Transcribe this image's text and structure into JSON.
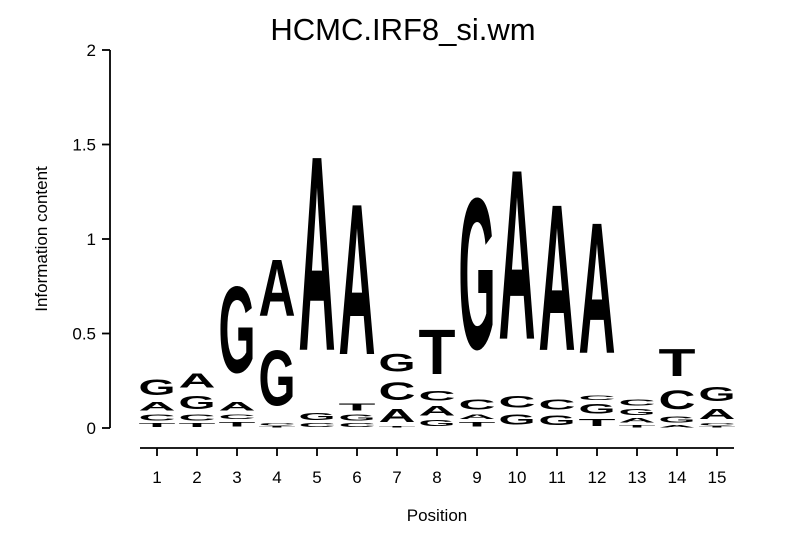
{
  "chart_data": {
    "type": "sequence_logo",
    "title": "HCMC.IRF8_si.wm",
    "xlabel": "Position",
    "ylabel": "Information content",
    "ylim": [
      0,
      2
    ],
    "yticks": [
      0,
      0.5,
      1,
      1.5,
      2
    ],
    "ytick_labels": [
      "0",
      "0.5",
      "1",
      "1.5",
      "2"
    ],
    "positions": [
      "1",
      "2",
      "3",
      "4",
      "5",
      "6",
      "7",
      "8",
      "9",
      "10",
      "11",
      "12",
      "13",
      "14",
      "15"
    ],
    "colors": {
      "A": "#00E100",
      "C": "#0000EE",
      "G": "#FFA500",
      "T": "#EE0000"
    },
    "stacks": [
      [
        {
          "base": "G",
          "bits": 0.13
        },
        {
          "base": "A",
          "bits": 0.07
        },
        {
          "base": "C",
          "bits": 0.05
        },
        {
          "base": "T",
          "bits": 0.03
        }
      ],
      [
        {
          "base": "A",
          "bits": 0.12
        },
        {
          "base": "G",
          "bits": 0.11
        },
        {
          "base": "C",
          "bits": 0.05
        },
        {
          "base": "T",
          "bits": 0.03
        }
      ],
      [
        {
          "base": "G",
          "bits": 0.73
        },
        {
          "base": "A",
          "bits": 0.07
        },
        {
          "base": "C",
          "bits": 0.04
        },
        {
          "base": "T",
          "bits": 0.04
        }
      ],
      [
        {
          "base": "A",
          "bits": 0.48
        },
        {
          "base": "G",
          "bits": 0.47
        },
        {
          "base": "C",
          "bits": 0.02
        },
        {
          "base": "T",
          "bits": 0.01
        }
      ],
      [
        {
          "base": "A",
          "bits": 1.65
        },
        {
          "base": "G",
          "bits": 0.06
        },
        {
          "base": "C",
          "bits": 0.03
        }
      ],
      [
        {
          "base": "A",
          "bits": 1.28
        },
        {
          "base": "T",
          "bits": 0.06
        },
        {
          "base": "G",
          "bits": 0.05
        },
        {
          "base": "C",
          "bits": 0.03
        }
      ],
      [
        {
          "base": "G",
          "bits": 0.15
        },
        {
          "base": "C",
          "bits": 0.15
        },
        {
          "base": "A",
          "bits": 0.11
        },
        {
          "base": "T",
          "bits": 0.01
        }
      ],
      [
        {
          "base": "T",
          "bits": 0.38
        },
        {
          "base": "C",
          "bits": 0.08
        },
        {
          "base": "A",
          "bits": 0.08
        },
        {
          "base": "G",
          "bits": 0.05
        }
      ],
      [
        {
          "base": "G",
          "bits": 1.28
        },
        {
          "base": "C",
          "bits": 0.09
        },
        {
          "base": "A",
          "bits": 0.04
        },
        {
          "base": "T",
          "bits": 0.04
        }
      ],
      [
        {
          "base": "A",
          "bits": 1.44
        },
        {
          "base": "C",
          "bits": 0.1
        },
        {
          "base": "G",
          "bits": 0.09
        }
      ],
      [
        {
          "base": "A",
          "bits": 1.24
        },
        {
          "base": "C",
          "bits": 0.09
        },
        {
          "base": "G",
          "bits": 0.08
        }
      ],
      [
        {
          "base": "A",
          "bits": 1.11
        },
        {
          "base": "C",
          "bits": 0.04
        },
        {
          "base": "G",
          "bits": 0.08
        },
        {
          "base": "T",
          "bits": 0.06
        }
      ],
      [
        {
          "base": "C",
          "bits": 0.05
        },
        {
          "base": "G",
          "bits": 0.05
        },
        {
          "base": "A",
          "bits": 0.04
        },
        {
          "base": "T",
          "bits": 0.02
        }
      ],
      [
        {
          "base": "T",
          "bits": 0.23
        },
        {
          "base": "C",
          "bits": 0.16
        },
        {
          "base": "G",
          "bits": 0.05
        },
        {
          "base": "A",
          "bits": 0.02
        }
      ],
      [
        {
          "base": "G",
          "bits": 0.12
        },
        {
          "base": "A",
          "bits": 0.09
        },
        {
          "base": "C",
          "bits": 0.02
        },
        {
          "base": "T",
          "bits": 0.01
        }
      ]
    ],
    "legend": null,
    "grid": false
  }
}
